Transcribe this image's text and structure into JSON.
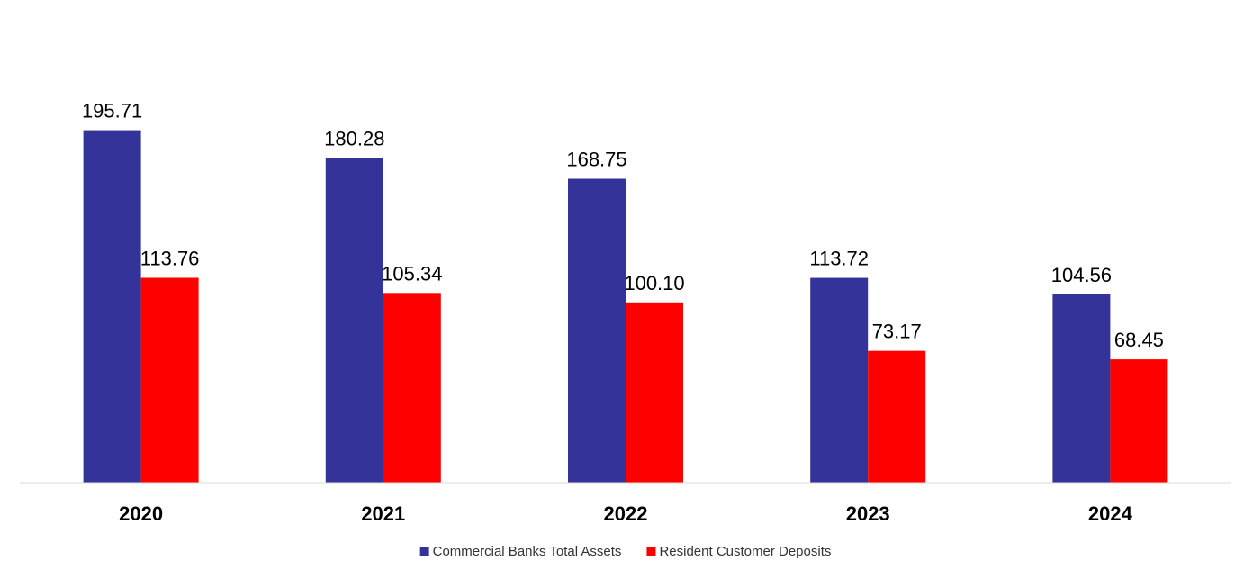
{
  "chart_data": {
    "type": "bar",
    "title": "",
    "xlabel": "",
    "ylabel": "",
    "categories": [
      "2020",
      "2021",
      "2022",
      "2023",
      "2024"
    ],
    "series": [
      {
        "name": "Commercial Banks Total Assets",
        "color": "#333399",
        "values": [
          195.71,
          180.28,
          168.75,
          113.72,
          104.56
        ],
        "labels": [
          "195.71",
          "180.28",
          "168.75",
          "113.72",
          "104.56"
        ]
      },
      {
        "name": "Resident Customer Deposits",
        "color": "#ff0000",
        "values": [
          113.76,
          105.34,
          100.1,
          73.17,
          68.45
        ],
        "labels": [
          "113.76",
          "105.34",
          "100.10",
          "73.17",
          "68.45"
        ]
      }
    ],
    "ylim": [
      0,
      200
    ],
    "grid": false,
    "legend_position": "bottom-center",
    "axis_color": "#d9d9d9"
  }
}
